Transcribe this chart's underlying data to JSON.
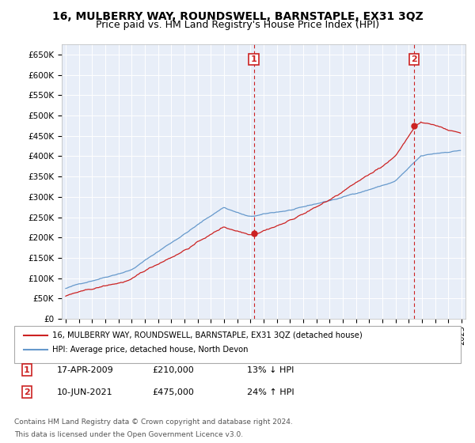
{
  "title": "16, MULBERRY WAY, ROUNDSWELL, BARNSTAPLE, EX31 3QZ",
  "subtitle": "Price paid vs. HM Land Registry's House Price Index (HPI)",
  "ylim": [
    0,
    675000
  ],
  "yticks": [
    0,
    50000,
    100000,
    150000,
    200000,
    250000,
    300000,
    350000,
    400000,
    450000,
    500000,
    550000,
    600000,
    650000
  ],
  "ytick_labels": [
    "£0",
    "£50K",
    "£100K",
    "£150K",
    "£200K",
    "£250K",
    "£300K",
    "£350K",
    "£400K",
    "£450K",
    "£500K",
    "£550K",
    "£600K",
    "£650K"
  ],
  "hpi_color": "#6699cc",
  "price_color": "#cc2222",
  "sale1_date": "17-APR-2009",
  "sale1_price": "£210,000",
  "sale1_pct": "13% ↓ HPI",
  "sale2_date": "10-JUN-2021",
  "sale2_price": "£475,000",
  "sale2_pct": "24% ↑ HPI",
  "legend_label1": "16, MULBERRY WAY, ROUNDSWELL, BARNSTAPLE, EX31 3QZ (detached house)",
  "legend_label2": "HPI: Average price, detached house, North Devon",
  "footer1": "Contains HM Land Registry data © Crown copyright and database right 2024.",
  "footer2": "This data is licensed under the Open Government Licence v3.0.",
  "bg_color": "#e8eef8",
  "title_fontsize": 10,
  "subtitle_fontsize": 9
}
